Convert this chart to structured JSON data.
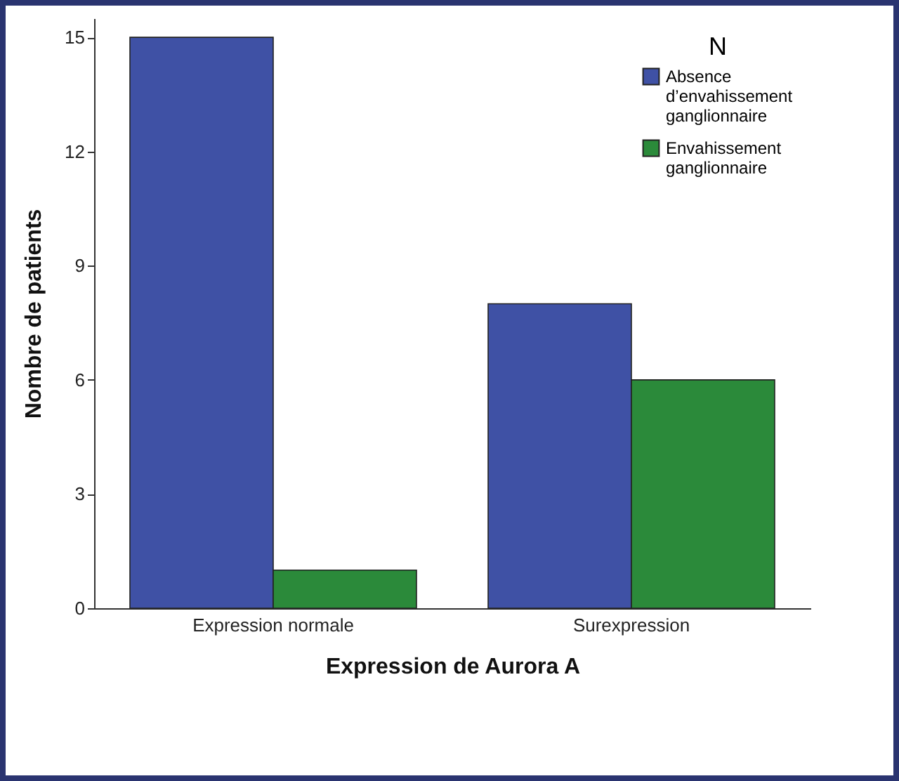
{
  "chart_data": {
    "type": "bar",
    "xlabel": "Expression de Aurora A",
    "ylabel": "Nombre de patients",
    "legend_title": "N",
    "legend": "top right",
    "grid": false,
    "categories": [
      "Expression normale",
      "Surexpression"
    ],
    "series": [
      {
        "name": "Absence d’envahissement ganglionnaire",
        "color": "#3f51a5",
        "values": [
          15,
          8
        ]
      },
      {
        "name": "Envahissement ganglionnaire",
        "color": "#2b8a3a",
        "values": [
          1,
          6
        ]
      }
    ],
    "ylim": [
      0,
      15.5
    ],
    "yticks": [
      0,
      3,
      6,
      9,
      12,
      15
    ]
  }
}
